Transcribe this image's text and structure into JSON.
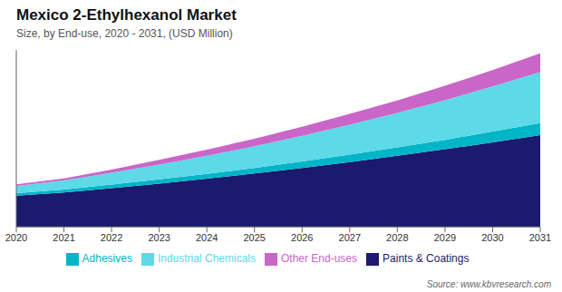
{
  "chart_data": {
    "type": "area",
    "title": "Mexico 2-Ethylhexanol Market",
    "subtitle": "Size, by End-use, 2020 - 2031, (USD Million)",
    "annotations": [
      "Source: www.kbvresearch.com"
    ],
    "x": [
      2020,
      2021,
      2022,
      2023,
      2024,
      2025,
      2026,
      2027,
      2028,
      2029,
      2030,
      2031
    ],
    "series": [
      {
        "name": "Paints & Coatings",
        "color": "#1a1a6e",
        "values": [
          95,
          105,
          118,
          132,
          147,
          163,
          180,
          198,
          217,
          237,
          258,
          280
        ]
      },
      {
        "name": "Adhesives",
        "color": "#00b5c8",
        "values": [
          8,
          9,
          11,
          13,
          15,
          17,
          20,
          23,
          26,
          29,
          33,
          37
        ]
      },
      {
        "name": "Industrial Chemicals",
        "color": "#5dd9e8",
        "values": [
          22,
          28,
          36,
          45,
          55,
          66,
          78,
          91,
          105,
          121,
          138,
          156
        ]
      },
      {
        "name": "Other End-uses",
        "color": "#c966c8",
        "values": [
          5,
          6,
          10,
          15,
          19,
          23,
          28,
          33,
          38,
          44,
          50,
          57
        ]
      }
    ],
    "xlim": [
      2020,
      2031
    ],
    "xticks": [
      2020,
      2021,
      2022,
      2023,
      2024,
      2025,
      2026,
      2027,
      2028,
      2029,
      2030,
      2031
    ],
    "ylim": [
      0,
      540.6
    ],
    "stacked": true,
    "legend": "bottom",
    "grid": false,
    "tick_labels": "x"
  }
}
